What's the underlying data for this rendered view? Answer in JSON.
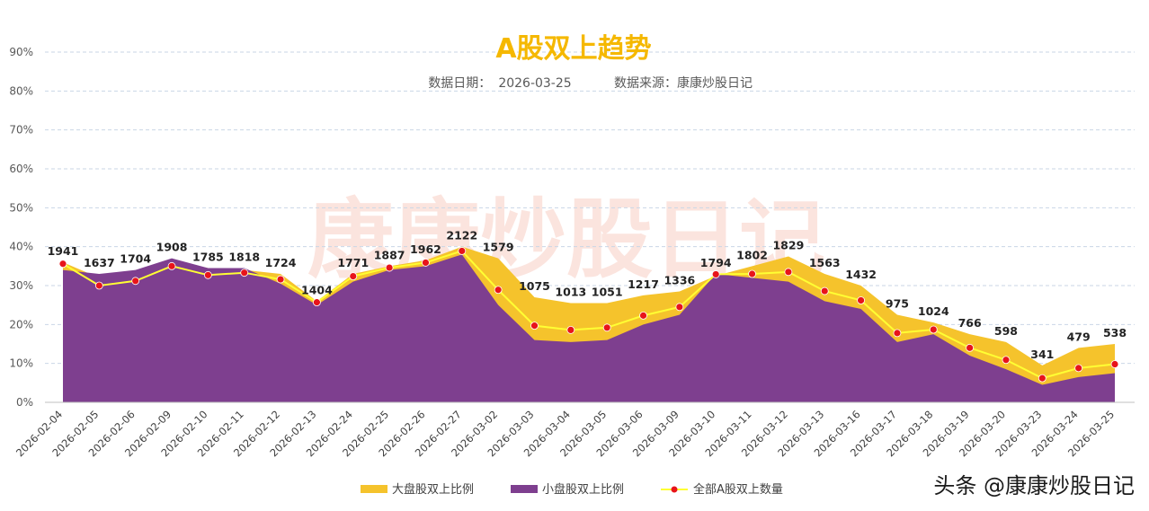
{
  "chart_data": {
    "type": "area",
    "title": "A股双上趋势",
    "subtitle_date_label": "数据日期：",
    "subtitle_date": "2026-03-25",
    "subtitle_source_label": "数据来源：",
    "subtitle_source": "康康炒股日记",
    "ylim": [
      0,
      90
    ],
    "yticks": [
      "0%",
      "10%",
      "20%",
      "30%",
      "40%",
      "50%",
      "60%",
      "70%",
      "80%",
      "90%"
    ],
    "grid": true,
    "legend_position": "bottom",
    "categories": [
      "2026-02-04",
      "2026-02-05",
      "2026-02-06",
      "2026-02-09",
      "2026-02-10",
      "2026-02-11",
      "2026-02-12",
      "2026-02-13",
      "2026-02-24",
      "2026-02-25",
      "2026-02-26",
      "2026-02-27",
      "2026-03-02",
      "2026-03-03",
      "2026-03-04",
      "2026-03-05",
      "2026-03-06",
      "2026-03-09",
      "2026-03-10",
      "2026-03-11",
      "2026-03-12",
      "2026-03-13",
      "2026-03-16",
      "2026-03-17",
      "2026-03-18",
      "2026-03-19",
      "2026-03-20",
      "2026-03-23",
      "2026-03-24",
      "2026-03-25"
    ],
    "series": [
      {
        "name": "大盘股双上比例",
        "kind": "area",
        "color": "#f5c32c",
        "values": [
          36,
          32,
          33,
          36.5,
          34.5,
          34,
          33,
          26,
          33,
          35,
          36.5,
          40,
          37,
          27,
          25.5,
          25.5,
          27.5,
          28.5,
          32.5,
          35,
          37.5,
          33,
          30,
          22.5,
          20.5,
          17.5,
          15.5,
          9.5,
          14,
          15
        ]
      },
      {
        "name": "小盘股双上比例",
        "kind": "area",
        "color": "#7e3f8f",
        "values": [
          34,
          33,
          34,
          37,
          34.5,
          34.5,
          30.5,
          25,
          31,
          34,
          35,
          38,
          25,
          16,
          15.5,
          16,
          20,
          22.5,
          33,
          32,
          31,
          26,
          24,
          15.5,
          17.5,
          12,
          8.5,
          4.5,
          6.5,
          7.5
        ]
      },
      {
        "name": "全部A股双上数量",
        "kind": "line",
        "color": "#ffff33",
        "marker_color": "#e8141a",
        "values": [
          1941,
          1637,
          1704,
          1908,
          1785,
          1818,
          1724,
          1404,
          1771,
          1887,
          1962,
          2122,
          1579,
          1075,
          1013,
          1051,
          1217,
          1336,
          1794,
          1802,
          1829,
          1563,
          1432,
          975,
          1024,
          766,
          598,
          341,
          479,
          538
        ],
        "line_pct": [
          35.6,
          30,
          31.2,
          35,
          32.7,
          33.3,
          31.6,
          25.7,
          32.4,
          34.6,
          35.9,
          38.9,
          28.9,
          19.7,
          18.6,
          19.2,
          22.3,
          24.5,
          32.9,
          33,
          33.5,
          28.6,
          26.2,
          17.8,
          18.7,
          14,
          10.9,
          6.2,
          8.8,
          9.8
        ]
      }
    ],
    "watermark": "康康炒股日记"
  },
  "footer": {
    "source_tag": "头条 @康康炒股日记"
  }
}
